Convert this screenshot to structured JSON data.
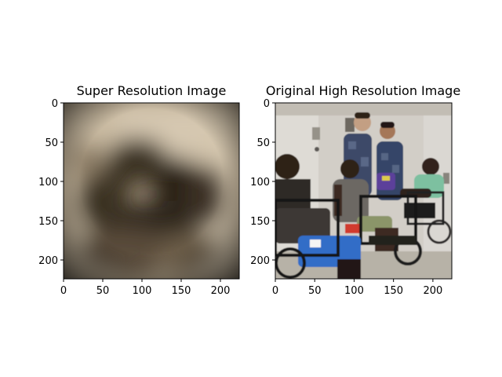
{
  "chart_data": [
    {
      "type": "image",
      "title": "Super Resolution Image",
      "xticks": [
        0,
        50,
        100,
        150,
        200
      ],
      "yticks": [
        0,
        50,
        100,
        150,
        200
      ],
      "xlim": [
        0,
        224
      ],
      "ylim": [
        224,
        0
      ],
      "image_description_colors": {
        "light": "#cdbfa8",
        "dark": "#1c1710"
      }
    },
    {
      "type": "image",
      "title": "Original High Resolution Image",
      "xticks": [
        0,
        50,
        100,
        150,
        200
      ],
      "yticks": [
        0,
        50,
        100,
        150,
        200
      ],
      "xlim": [
        0,
        224
      ],
      "ylim": [
        224,
        0
      ]
    }
  ]
}
